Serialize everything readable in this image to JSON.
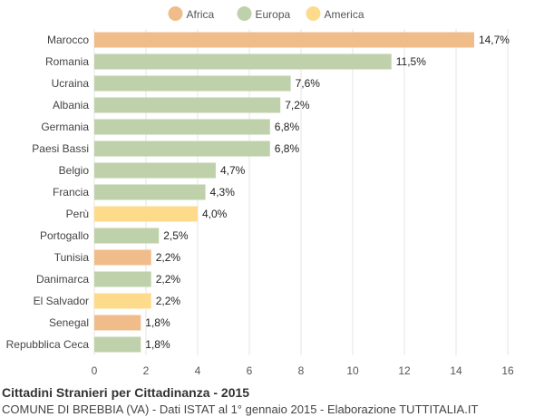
{
  "chart_data": {
    "type": "bar",
    "orientation": "horizontal",
    "categories": [
      "Marocco",
      "Romania",
      "Ucraina",
      "Albania",
      "Germania",
      "Paesi Bassi",
      "Belgio",
      "Francia",
      "Perù",
      "Portogallo",
      "Tunisia",
      "Danimarca",
      "El Salvador",
      "Senegal",
      "Repubblica Ceca"
    ],
    "values": [
      14.7,
      11.5,
      7.6,
      7.2,
      6.8,
      6.8,
      4.7,
      4.3,
      4.0,
      2.5,
      2.2,
      2.2,
      2.2,
      1.8,
      1.8
    ],
    "value_labels": [
      "14,7%",
      "11,5%",
      "7,6%",
      "7,2%",
      "6,8%",
      "6,8%",
      "4,7%",
      "4,3%",
      "4,0%",
      "2,5%",
      "2,2%",
      "2,2%",
      "2,2%",
      "1,8%",
      "1,8%"
    ],
    "groups": [
      "Africa",
      "Europa",
      "Europa",
      "Europa",
      "Europa",
      "Europa",
      "Europa",
      "Europa",
      "America",
      "Europa",
      "Africa",
      "Europa",
      "America",
      "Africa",
      "Europa"
    ],
    "legend": [
      {
        "name": "Africa",
        "color": "#f0bc8a"
      },
      {
        "name": "Europa",
        "color": "#bfd1ab"
      },
      {
        "name": "America",
        "color": "#fedb8b"
      }
    ],
    "legend_position": "top-center",
    "xlim": [
      0,
      16
    ],
    "xticks": [
      0,
      2,
      4,
      6,
      8,
      10,
      12,
      14,
      16
    ],
    "xlabel": "",
    "ylabel": "",
    "grid": true
  },
  "footer": {
    "title": "Cittadini Stranieri per Cittadinanza - 2015",
    "subtitle": "COMUNE DI BREBBIA (VA) - Dati ISTAT al 1° gennaio 2015 - Elaborazione TUTTITALIA.IT"
  }
}
